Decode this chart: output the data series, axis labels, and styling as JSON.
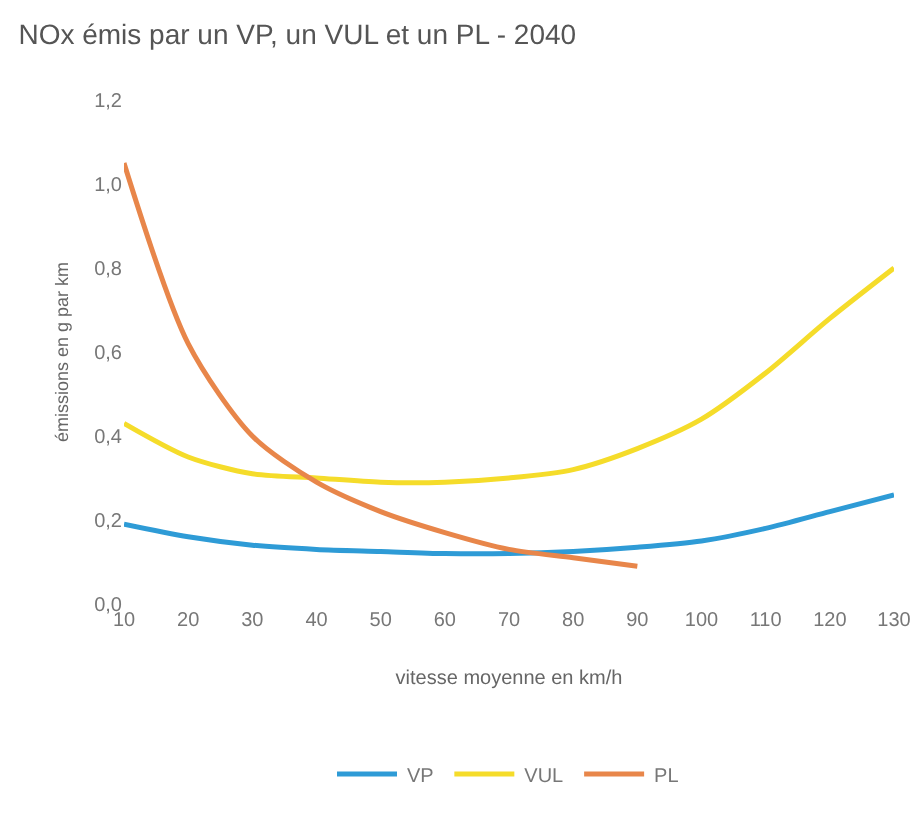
{
  "chart_data": {
    "type": "line",
    "title": "NOx émis par un VP, un VUL et un PL - 2040",
    "xlabel": "vitesse moyenne en km/h",
    "ylabel": "émissions en g par km",
    "x": [
      10,
      20,
      30,
      40,
      50,
      60,
      70,
      80,
      90,
      100,
      110,
      120,
      130
    ],
    "series": [
      {
        "name": "VP",
        "color": "#2e9bd6",
        "values": [
          0.19,
          0.16,
          0.14,
          0.13,
          0.125,
          0.12,
          0.12,
          0.125,
          0.135,
          0.15,
          0.18,
          0.22,
          0.26
        ]
      },
      {
        "name": "VUL",
        "color": "#f5dc2a",
        "values": [
          0.43,
          0.35,
          0.31,
          0.3,
          0.29,
          0.29,
          0.3,
          0.32,
          0.37,
          0.44,
          0.55,
          0.68,
          0.8
        ]
      },
      {
        "name": "PL",
        "color": "#e8864a",
        "values": [
          1.05,
          0.62,
          0.4,
          0.29,
          0.22,
          0.17,
          0.13,
          0.11,
          0.09,
          null,
          null,
          null,
          null
        ]
      }
    ],
    "xlim": [
      10,
      130
    ],
    "xticks": [
      10,
      20,
      30,
      40,
      50,
      60,
      70,
      80,
      90,
      100,
      110,
      120,
      130
    ],
    "ylim": [
      0,
      1.2
    ],
    "yticks": [
      {
        "value": 0,
        "label": "0,0"
      },
      {
        "value": 0.2,
        "label": "0,2"
      },
      {
        "value": 0.4,
        "label": "0,4"
      },
      {
        "value": 0.6,
        "label": "0,6"
      },
      {
        "value": 0.8,
        "label": "0,8"
      },
      {
        "value": 1,
        "label": "1,0"
      },
      {
        "value": 1.2,
        "label": "1,2"
      }
    ],
    "grid": false,
    "legend": "bottom",
    "marker": "none",
    "line_style": "solid"
  }
}
